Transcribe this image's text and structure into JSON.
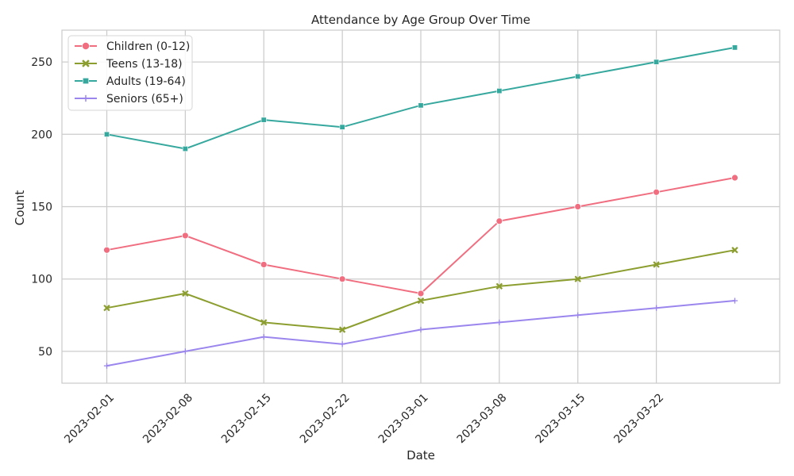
{
  "chart_data": {
    "type": "line",
    "title": "Attendance by Age Group Over Time",
    "xlabel": "Date",
    "ylabel": "Count",
    "x": [
      "2023-02-01",
      "2023-02-08",
      "2023-02-15",
      "2023-02-22",
      "2023-03-01",
      "2023-03-08",
      "2023-03-15",
      "2023-03-22",
      "2023-03-29"
    ],
    "xticks": [
      "2023-02-01",
      "2023-02-08",
      "2023-02-15",
      "2023-02-22",
      "2023-03-01",
      "2023-03-08",
      "2023-03-15",
      "2023-03-22"
    ],
    "yticks": [
      50,
      100,
      150,
      200,
      250
    ],
    "ylim": [
      28,
      272
    ],
    "xlim": [
      "2023-01-28",
      "2023-04-02"
    ],
    "grid": true,
    "legend_position": "top-left",
    "series": [
      {
        "name": "Children (0-12)",
        "color": "#f06e80",
        "marker": "circle",
        "values": [
          120,
          130,
          110,
          100,
          90,
          140,
          150,
          160,
          170
        ]
      },
      {
        "name": "Teens (13-18)",
        "color": "#8c9e2f",
        "marker": "x",
        "values": [
          80,
          90,
          70,
          65,
          85,
          95,
          100,
          110,
          120
        ]
      },
      {
        "name": "Adults (19-64)",
        "color": "#36a89e",
        "marker": "square",
        "values": [
          200,
          190,
          210,
          205,
          220,
          230,
          240,
          250,
          260
        ]
      },
      {
        "name": "Seniors (65+)",
        "color": "#9b86ee",
        "marker": "plus",
        "values": [
          40,
          50,
          60,
          55,
          65,
          70,
          75,
          80,
          85
        ]
      }
    ]
  }
}
